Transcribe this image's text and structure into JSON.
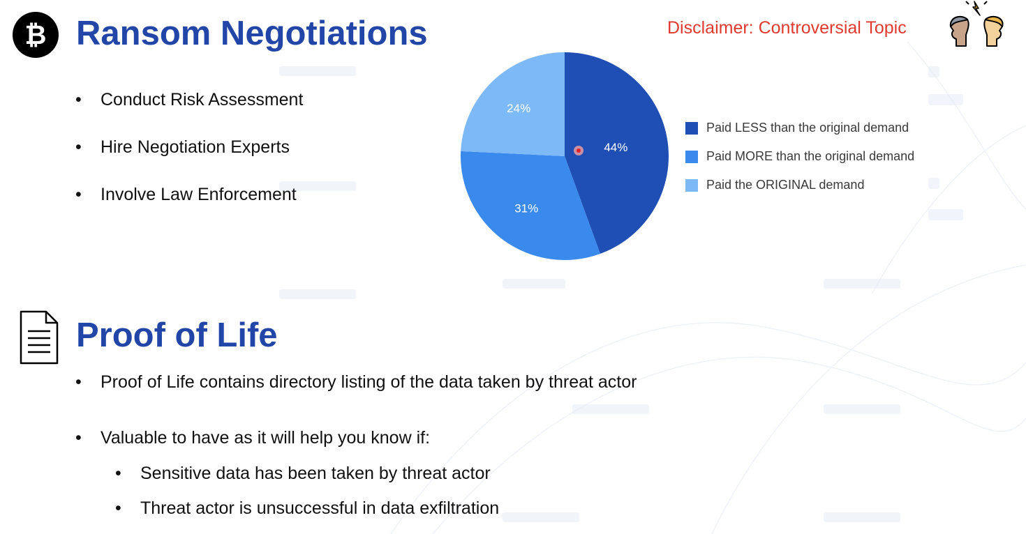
{
  "section1": {
    "title": "Ransom Negotiations",
    "icon": "bitcoin-icon",
    "icon_symbol": "₿",
    "bullets": [
      "Conduct Risk Assessment",
      "Hire Negotiation Experts",
      "Involve Law Enforcement"
    ]
  },
  "disclaimer": {
    "text": "Disclaimer: Controversial Topic",
    "color": "#e03a2f",
    "icon": "arguing-people-icon"
  },
  "chart_data": {
    "type": "pie",
    "title": "",
    "slices": [
      {
        "label": "Paid LESS than the original demand",
        "value": 44,
        "display": "44%",
        "color": "#1f4fb4"
      },
      {
        "label": "Paid MORE than the original demand",
        "value": 31,
        "display": "31%",
        "color": "#3a8aee"
      },
      {
        "label": "Paid the ORIGINAL demand",
        "value": 24,
        "display": "24%",
        "color": "#7db8f7"
      }
    ],
    "start_angle_deg": 0,
    "direction": "clockwise",
    "legend_position": "right"
  },
  "section2": {
    "title": "Proof of Life",
    "icon": "document-icon",
    "bullets": [
      "Proof of Life contains directory listing of the data taken by threat actor",
      "Valuable to have as it will help you know if:"
    ],
    "sub_bullets": [
      "Sensitive data has been taken by threat actor",
      "Threat actor is unsuccessful in data exfiltration"
    ]
  },
  "colors": {
    "heading": "#2146a8",
    "bullet_text": "#111111"
  }
}
